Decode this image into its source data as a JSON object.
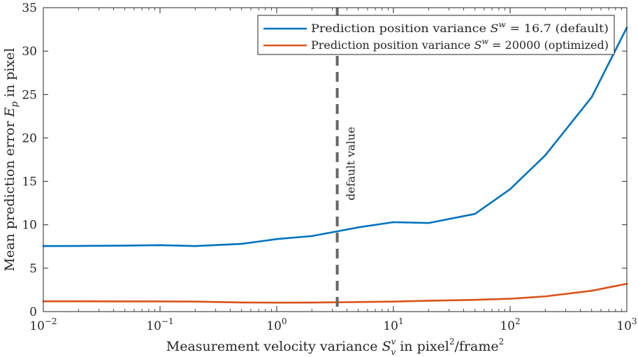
{
  "chart_data": {
    "type": "line",
    "x_scale": "log",
    "xlim": [
      0.01,
      1000
    ],
    "ylim": [
      0,
      35
    ],
    "x_ticks": [
      0.01,
      0.1,
      1,
      10,
      100,
      1000
    ],
    "x_tick_bases": [
      "10",
      "10",
      "10",
      "10",
      "10",
      "10"
    ],
    "x_tick_exponents": [
      "−2",
      "−1",
      "0",
      "1",
      "2",
      "3"
    ],
    "y_ticks": [
      0,
      5,
      10,
      15,
      20,
      25,
      30,
      35
    ],
    "y_tick_labels": [
      "0",
      "5",
      "10",
      "15",
      "20",
      "25",
      "30",
      "35"
    ],
    "xlabel": {
      "before": "Measurement velocity variance ",
      "symbol": "S",
      "symbol_sub": "v",
      "symbol_sup": "v",
      "middle": " in pixel",
      "sup1": "2",
      "after": "/frame",
      "sup2": "2"
    },
    "ylabel": {
      "before": "Mean prediction error ",
      "symbol": "E",
      "symbol_sub": "p",
      "after": " in pixel"
    },
    "grid": false,
    "legend_position": "top-right",
    "series": [
      {
        "name": "Prediction position variance S^w = 16.7 (default)",
        "legend_prefix": "Prediction position variance ",
        "legend_symbol": "S",
        "legend_sup": "w",
        "legend_suffix": " = 16.7 (default)",
        "color": "#0072BD",
        "x": [
          0.01,
          0.02,
          0.05,
          0.1,
          0.2,
          0.5,
          1,
          2,
          5,
          10,
          20,
          50,
          100,
          200,
          500,
          1000
        ],
        "y": [
          7.55,
          7.56,
          7.6,
          7.65,
          7.55,
          7.8,
          8.35,
          8.7,
          9.7,
          10.3,
          10.2,
          11.25,
          14.1,
          18.0,
          24.7,
          32.7
        ]
      },
      {
        "name": "Prediction position variance S^w = 20000 (optimized)",
        "legend_prefix": "Prediction position variance ",
        "legend_symbol": "S",
        "legend_sup": "w",
        "legend_suffix": " = 20000 (optimized)",
        "color": "#D95319",
        "x": [
          0.01,
          0.02,
          0.05,
          0.1,
          0.2,
          0.5,
          1,
          2,
          5,
          10,
          20,
          50,
          100,
          200,
          500,
          1000
        ],
        "y": [
          1.18,
          1.18,
          1.17,
          1.17,
          1.15,
          1.05,
          1.03,
          1.04,
          1.1,
          1.15,
          1.25,
          1.35,
          1.48,
          1.75,
          2.4,
          3.2
        ]
      }
    ],
    "reference_line": {
      "x": 3.3,
      "label": "default value",
      "color": "#666666",
      "style": "dashed"
    }
  }
}
